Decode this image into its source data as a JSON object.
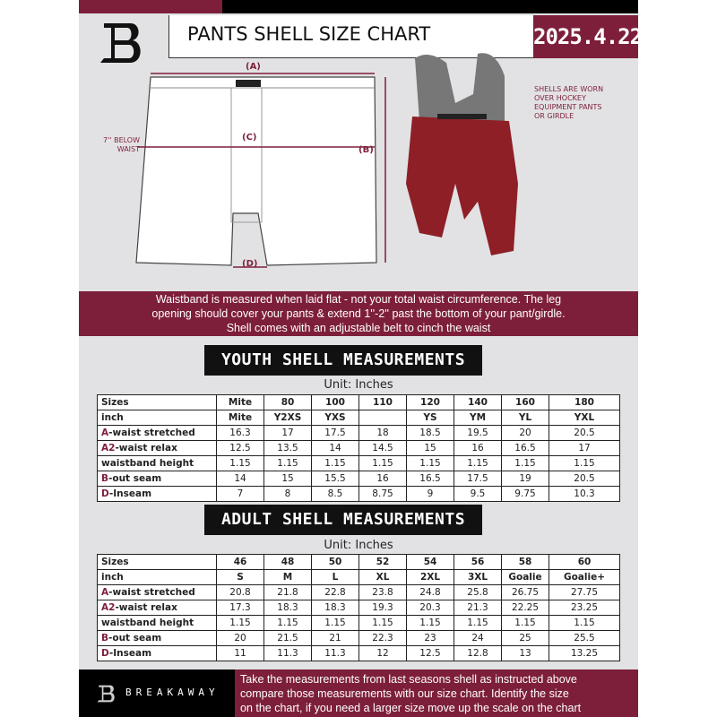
{
  "header": {
    "title": "PANTS SHELL SIZE CHART",
    "date": "2025.4.22",
    "logo_letter": "B"
  },
  "diagram": {
    "label_a": "(A)",
    "label_b": "(B)",
    "label_c": "(C)",
    "label_d": "(D)",
    "below_waist_note": [
      "7'' BELOW",
      "WAIST"
    ]
  },
  "photo": {
    "note": [
      "SHELLS ARE WORN",
      "OVER HOCKEY",
      "EQUIPMENT PANTS",
      "OR GIRDLE"
    ]
  },
  "banner": [
    "Waistband is measured when laid flat - not your total waist circumference. The leg",
    "opening should cover your pants & extend 1''-2'' past the bottom of your pant/girdle.",
    "Shell comes with an adjustable belt to cinch the waist"
  ],
  "youth": {
    "title": "YOUTH SHELL MEASUREMENTS",
    "unit": "Unit: Inches",
    "rows": [
      {
        "prefix": "",
        "label": "Sizes",
        "values": [
          "Mite",
          "80",
          "100",
          "110",
          "120",
          "140",
          "160",
          "180"
        ]
      },
      {
        "prefix": "",
        "label": "inch",
        "values": [
          "Mite",
          "Y2XS",
          "YXS",
          "",
          "YS",
          "YM",
          "YL",
          "YXL"
        ]
      },
      {
        "prefix": "A",
        "label": "-waist stretched",
        "values": [
          "16.3",
          "17",
          "17.5",
          "18",
          "18.5",
          "19.5",
          "20",
          "20.5"
        ]
      },
      {
        "prefix": "A2",
        "label": "-waist relax",
        "values": [
          "12.5",
          "13.5",
          "14",
          "14.5",
          "15",
          "16",
          "16.5",
          "17"
        ]
      },
      {
        "prefix": "",
        "label": "waistband height",
        "values": [
          "1.15",
          "1.15",
          "1.15",
          "1.15",
          "1.15",
          "1.15",
          "1.15",
          "1.15"
        ]
      },
      {
        "prefix": "B",
        "label": "-out seam",
        "values": [
          "14",
          "15",
          "15.5",
          "16",
          "16.5",
          "17.5",
          "19",
          "20.5"
        ]
      },
      {
        "prefix": "D",
        "label": "-Inseam",
        "values": [
          "7",
          "8",
          "8.5",
          "8.75",
          "9",
          "9.5",
          "9.75",
          "10.3"
        ]
      }
    ]
  },
  "adult": {
    "title": "ADULT SHELL MEASUREMENTS",
    "unit": "Unit: Inches",
    "rows": [
      {
        "prefix": "",
        "label": "Sizes",
        "values": [
          "46",
          "48",
          "50",
          "52",
          "54",
          "56",
          "58",
          "60"
        ]
      },
      {
        "prefix": "",
        "label": "inch",
        "values": [
          "S",
          "M",
          "L",
          "XL",
          "2XL",
          "3XL",
          "Goalie",
          "Goalie+"
        ]
      },
      {
        "prefix": "A",
        "label": "-waist stretched",
        "values": [
          "20.8",
          "21.8",
          "22.8",
          "23.8",
          "24.8",
          "25.8",
          "26.75",
          "27.75"
        ]
      },
      {
        "prefix": "A2",
        "label": "-waist relax",
        "values": [
          "17.3",
          "18.3",
          "18.3",
          "19.3",
          "20.3",
          "21.3",
          "22.25",
          "23.25"
        ]
      },
      {
        "prefix": "",
        "label": "waistband height",
        "values": [
          "1.15",
          "1.15",
          "1.15",
          "1.15",
          "1.15",
          "1.15",
          "1.15",
          "1.15"
        ]
      },
      {
        "prefix": "B",
        "label": "-out seam",
        "values": [
          "20",
          "21.5",
          "21",
          "22.3",
          "23",
          "24",
          "25",
          "25.5"
        ]
      },
      {
        "prefix": "D",
        "label": "-Inseam",
        "values": [
          "11",
          "11.3",
          "11.3",
          "12",
          "12.5",
          "12.8",
          "13",
          "13.25"
        ]
      }
    ]
  },
  "footer": {
    "brand": "BREAKAWAY",
    "logo_letter": "B",
    "text": [
      "Take the measurements from last seasons shell as instructed above",
      "compare those measurements  with our size chart. Identify the size",
      "on the chart, if you need a larger size move up the scale on the chart"
    ]
  },
  "colors": {
    "accent": "#7d1f3a",
    "dark": "#111111",
    "background": "#e2e2e4"
  }
}
